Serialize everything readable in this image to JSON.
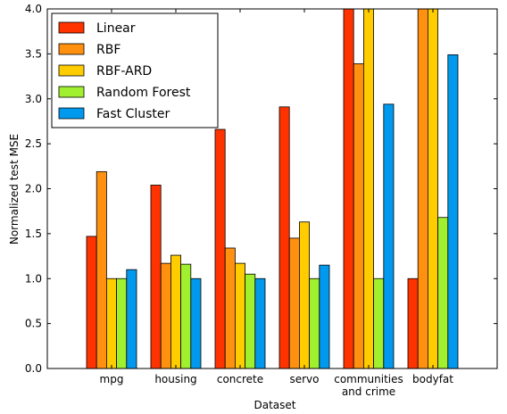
{
  "chart_data": {
    "type": "bar",
    "xlabel": "Dataset",
    "ylabel": "Normalized test MSE",
    "ylim": [
      0.0,
      4.0
    ],
    "yticks": [
      "0.0",
      "0.5",
      "1.0",
      "1.5",
      "2.0",
      "2.5",
      "3.0",
      "3.5",
      "4.0"
    ],
    "categories": [
      [
        "mpg"
      ],
      [
        "housing"
      ],
      [
        "concrete"
      ],
      [
        "servo"
      ],
      [
        "communities",
        "and crime"
      ],
      [
        "bodyfat"
      ]
    ],
    "legend_position": "top-left",
    "grid": false,
    "series": [
      {
        "name": "Linear",
        "color": "#ff3300",
        "values": [
          1.47,
          2.04,
          2.66,
          2.91,
          4.0,
          1.0
        ]
      },
      {
        "name": "RBF",
        "color": "#ff9010",
        "values": [
          2.19,
          1.17,
          1.34,
          1.45,
          3.39,
          4.0
        ]
      },
      {
        "name": "RBF-ARD",
        "color": "#ffcc00",
        "values": [
          1.0,
          1.26,
          1.17,
          1.63,
          4.0,
          4.0
        ]
      },
      {
        "name": "Random Forest",
        "color": "#a0f030",
        "values": [
          1.0,
          1.16,
          1.05,
          1.0,
          1.0,
          1.68
        ]
      },
      {
        "name": "Fast Cluster",
        "color": "#0099ee",
        "values": [
          1.1,
          1.0,
          1.0,
          1.15,
          2.94,
          3.49
        ]
      }
    ]
  }
}
